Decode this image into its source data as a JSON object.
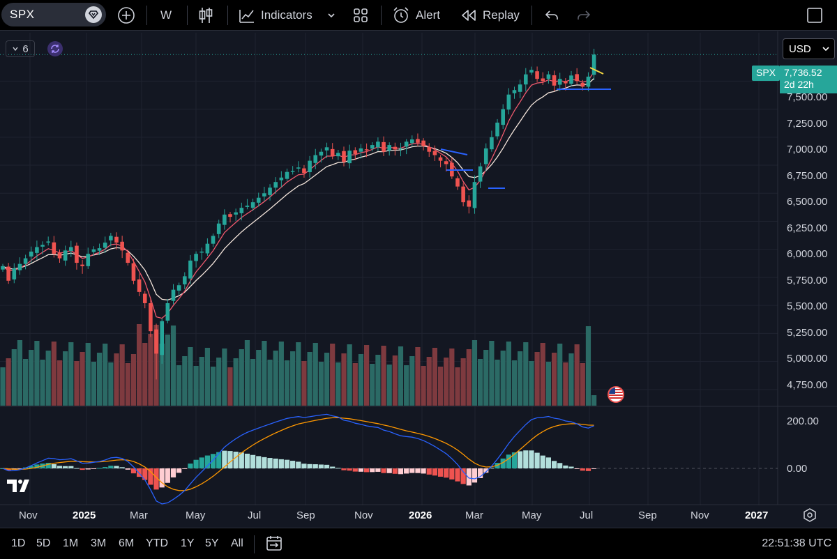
{
  "toolbar": {
    "symbol": "SPX",
    "interval": "W",
    "indicators_label": "Indicators",
    "alert_label": "Alert",
    "replay_label": "Replay"
  },
  "legend": {
    "count": "6"
  },
  "currency": "USD",
  "price": {
    "symbol_tag": "SPX",
    "last": "7,736.52",
    "countdown": "2d 22h"
  },
  "y_axis": [
    "7,500.00",
    "7,250.00",
    "7,000.00",
    "6,750.00",
    "6,500.00",
    "6,250.00",
    "6,000.00",
    "5,750.00",
    "5,500.00",
    "5,250.00",
    "5,000.00",
    "4,750.00"
  ],
  "macd_axis": [
    "200.00",
    "0.00"
  ],
  "x_axis": [
    {
      "label": "Nov",
      "bold": false
    },
    {
      "label": "2025",
      "bold": true
    },
    {
      "label": "Mar",
      "bold": false
    },
    {
      "label": "May",
      "bold": false
    },
    {
      "label": "Jul",
      "bold": false
    },
    {
      "label": "Sep",
      "bold": false
    },
    {
      "label": "Nov",
      "bold": false
    },
    {
      "label": "2026",
      "bold": true
    },
    {
      "label": "Mar",
      "bold": false
    },
    {
      "label": "May",
      "bold": false
    },
    {
      "label": "Jul",
      "bold": false
    },
    {
      "label": "Sep",
      "bold": false
    },
    {
      "label": "Nov",
      "bold": false
    },
    {
      "label": "2027",
      "bold": true
    }
  ],
  "ranges": [
    "1D",
    "5D",
    "1M",
    "3M",
    "6M",
    "YTD",
    "1Y",
    "5Y",
    "All"
  ],
  "clock": "22:51:38 UTC",
  "colors": {
    "up": "#26a69a",
    "down": "#ef5350",
    "vol_up": "#2b6a65",
    "vol_down": "#7e3a3f",
    "ma_fast": "#f05a6e",
    "ma_slow": "#f5e6dc",
    "macd": "#2962ff",
    "signal": "#ff9800",
    "hist_up_strong": "#26a69a",
    "hist_up_weak": "#b2dfdb",
    "hist_down_strong": "#ef5350",
    "hist_down_weak": "#ffcdd2",
    "drawing_blue": "#2962ff",
    "drawing_yellow": "#f5d742"
  },
  "chart_data": {
    "type": "candlestick",
    "symbol": "SPX",
    "interval": "W",
    "ylim": [
      4600,
      7900
    ],
    "closes": [
      5850,
      5720,
      5830,
      5870,
      5920,
      5980,
      6020,
      6040,
      6070,
      5960,
      5920,
      5990,
      6020,
      5880,
      5850,
      5960,
      6000,
      6010,
      6060,
      6120,
      6060,
      5990,
      5880,
      5720,
      5620,
      5520,
      5270,
      5070,
      5360,
      5520,
      5640,
      5680,
      5760,
      5900,
      5960,
      5980,
      6050,
      6120,
      6230,
      6310,
      6290,
      6330,
      6370,
      6390,
      6420,
      6460,
      6500,
      6550,
      6600,
      6640,
      6690,
      6700,
      6730,
      6680,
      6790,
      6840,
      6870,
      6910,
      6830,
      6860,
      6780,
      6880,
      6850,
      6900,
      6890,
      6930,
      6960,
      6870,
      6930,
      6890,
      6900,
      6960,
      6980,
      6950,
      6920,
      6870,
      6840,
      6790,
      6760,
      6650,
      6560,
      6420,
      6380,
      6600,
      6740,
      6900,
      7000,
      7130,
      7250,
      7380,
      7420,
      7470,
      7560,
      7600,
      7520,
      7500,
      7560,
      7460,
      7520,
      7480,
      7550,
      7500,
      7450,
      7540,
      7736.52
    ]
  }
}
